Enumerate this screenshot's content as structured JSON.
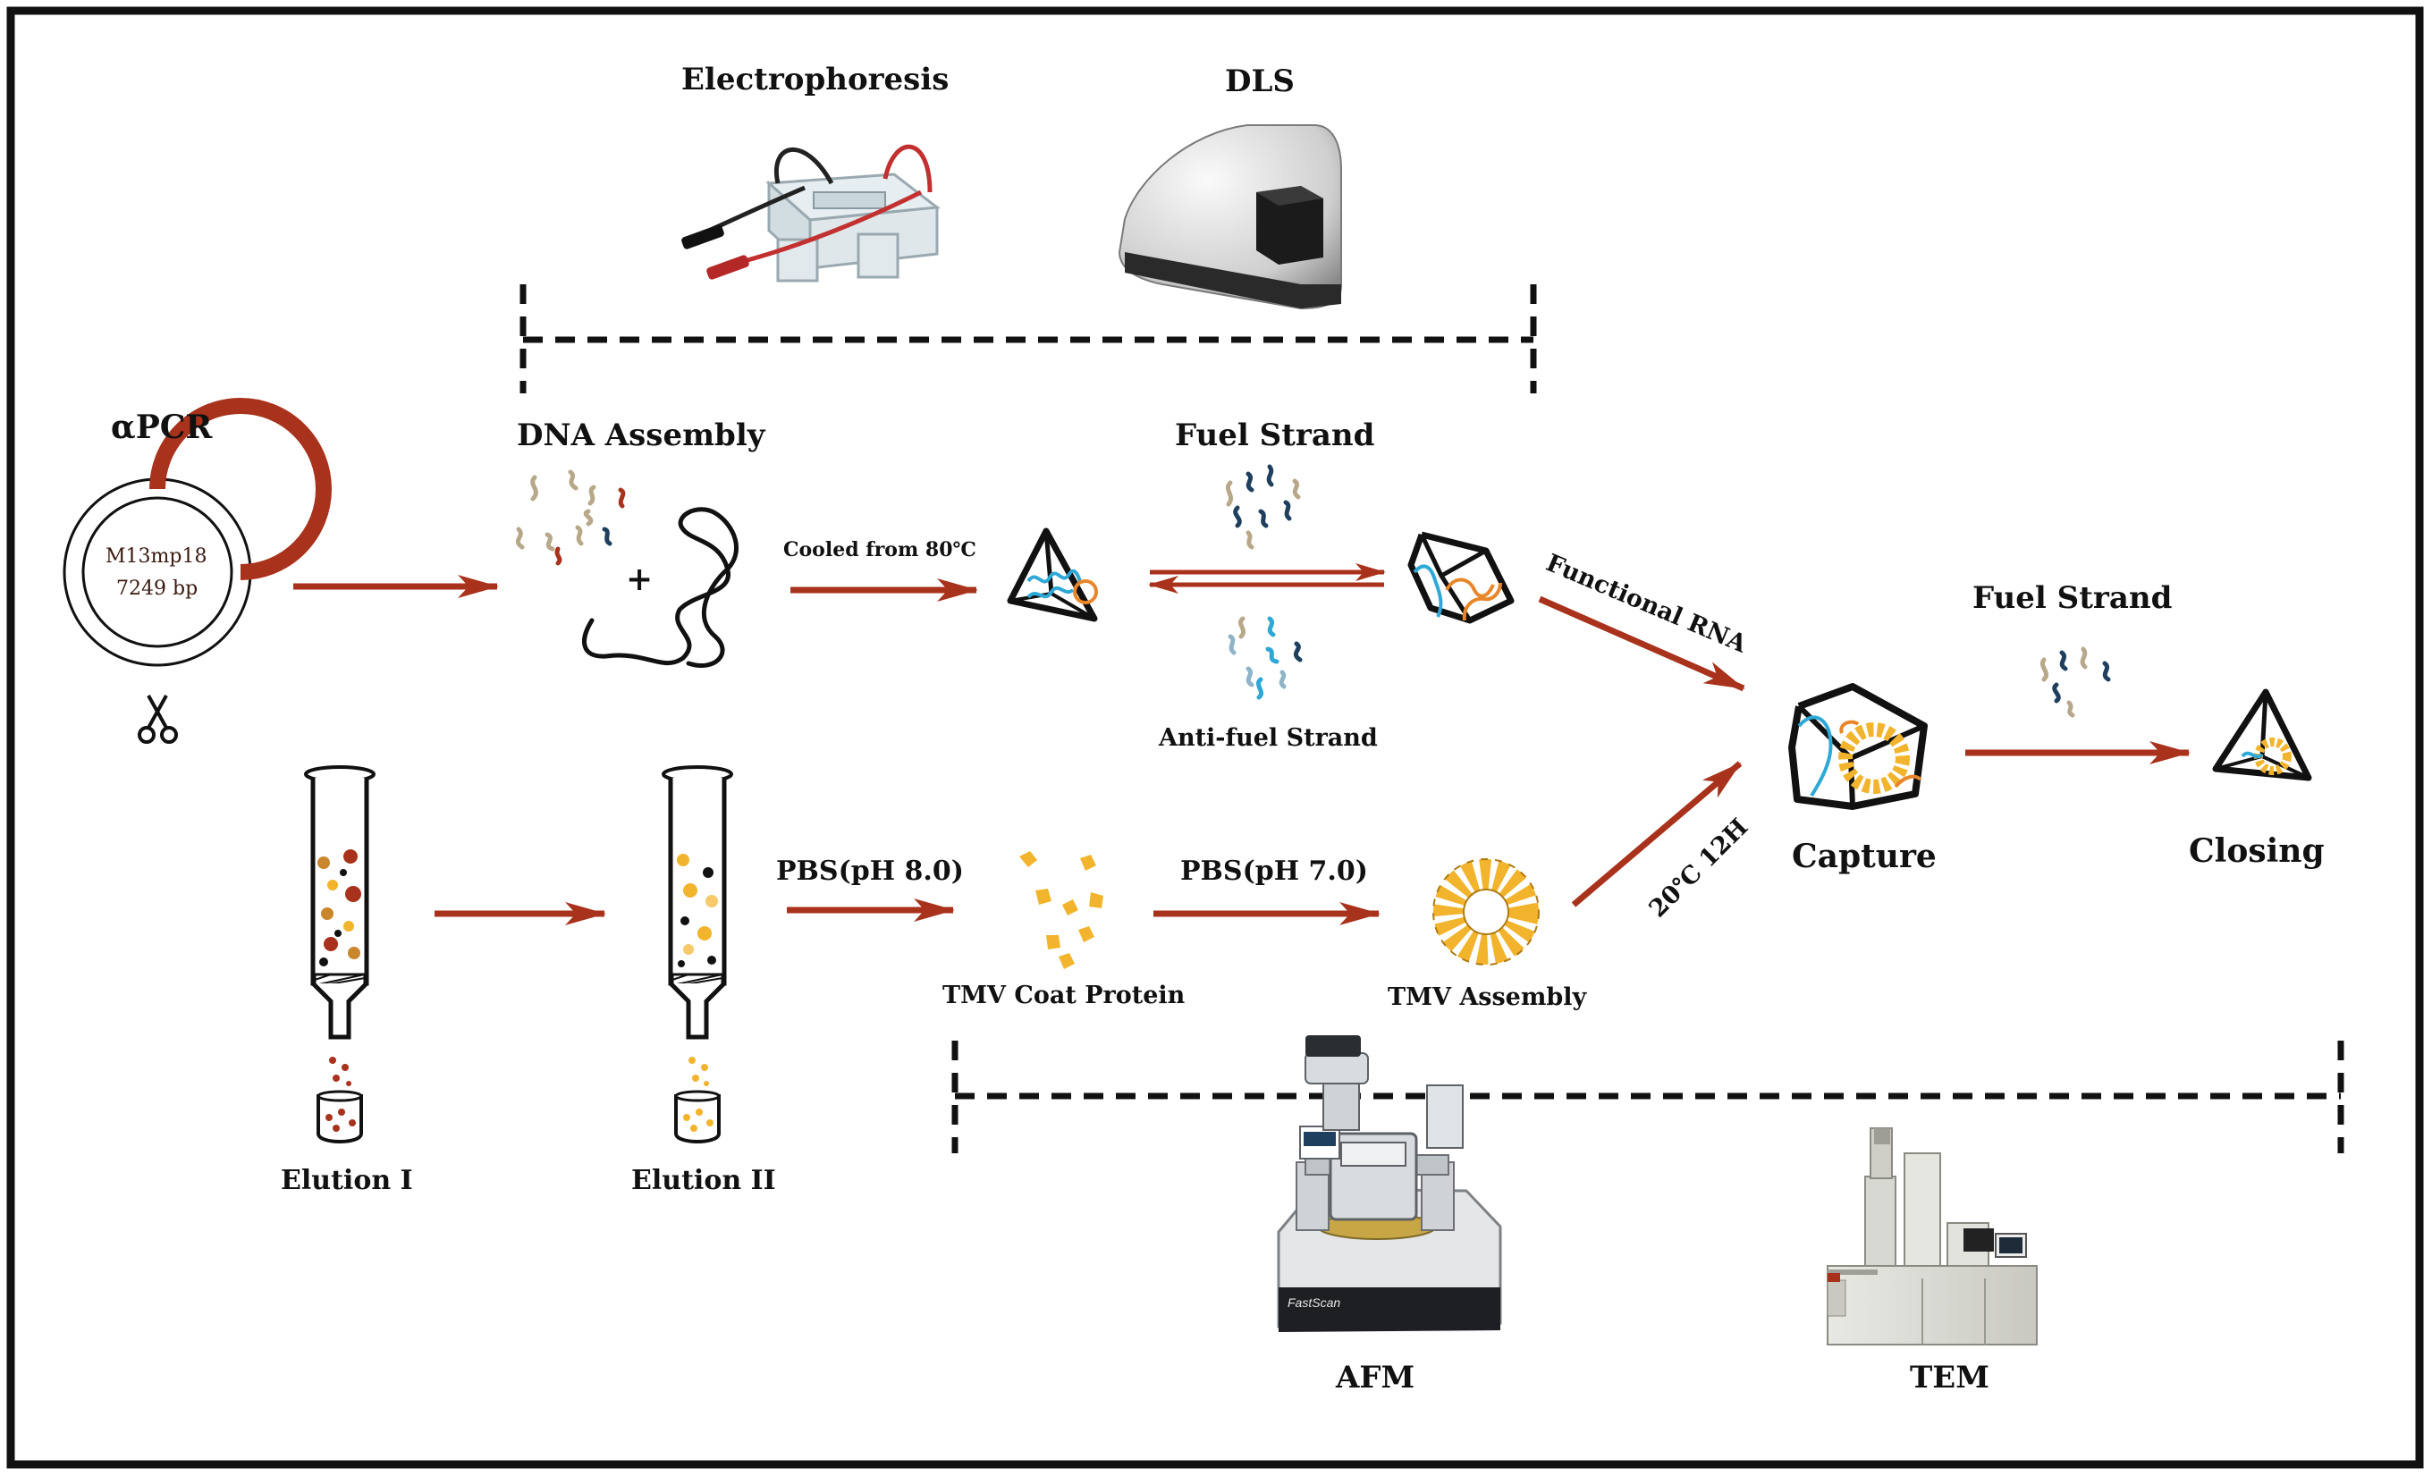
{
  "colors": {
    "arrow": "#a8321c",
    "plasmid": "#a8321c",
    "dna_cyan": "#2ea8d6",
    "dna_orange": "#e8872a",
    "tmv": "#f2b42c",
    "strand_tan": "#b8a88a",
    "strand_navy": "#1f3f5e",
    "strand_light": "#8fb4c6"
  },
  "labels": {
    "electrophoresis": "Electrophoresis",
    "dls": "DLS",
    "apcr": "αPCR",
    "plasmid_name": "M13mp18",
    "plasmid_size": "7249 bp",
    "dna_assembly": "DNA Assembly",
    "plus": "+",
    "cooled": "Cooled from 80℃",
    "fuel_strand_1": "Fuel Strand",
    "anti_fuel": "Anti-fuel Strand",
    "functional_rna": "Functional RNA",
    "fuel_strand_2": "Fuel Strand",
    "capture": "Capture",
    "closing": "Closing",
    "condition": "20℃ 12H",
    "pbs_80": "PBS(pH 8.0)",
    "pbs_70": "PBS(pH 7.0)",
    "tmv_coat": "TMV Coat Protein",
    "tmv_assembly": "TMV Assembly",
    "elution_1": "Elution I",
    "elution_2": "Elution II",
    "afm": "AFM",
    "tem": "TEM",
    "afm_brand": "FastScan"
  },
  "icons": {
    "scissors": "scissors-icon",
    "electrophoresis": "gel-electrophoresis-box",
    "dls": "dls-instrument",
    "afm": "afm-instrument",
    "tem": "tem-instrument"
  }
}
